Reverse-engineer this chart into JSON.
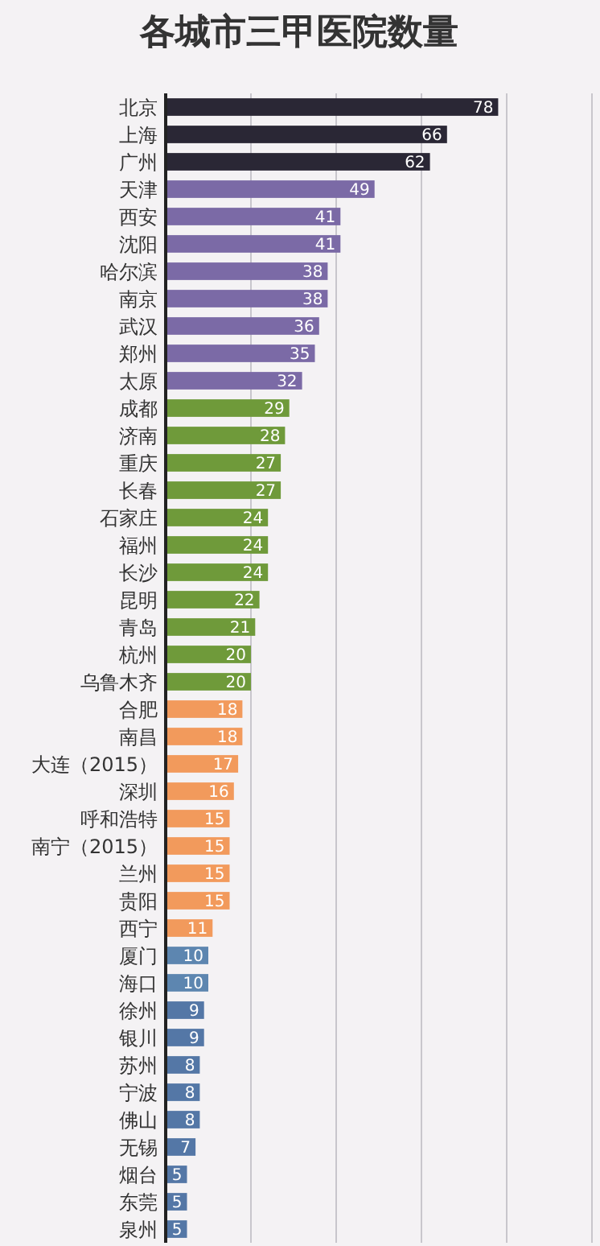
{
  "chart_data": {
    "type": "bar",
    "orientation": "horizontal",
    "title": "各城市三甲医院数量",
    "categories": [
      "北京",
      "上海",
      "广州",
      "天津",
      "西安",
      "沈阳",
      "哈尔滨",
      "南京",
      "武汉",
      "郑州",
      "太原",
      "成都",
      "济南",
      "重庆",
      "长春",
      "石家庄",
      "福州",
      "长沙",
      "昆明",
      "青岛",
      "杭州",
      "乌鲁木齐",
      "合肥",
      "南昌",
      "大连（2015）",
      "深圳",
      "呼和浩特",
      "南宁（2015）",
      "兰州",
      "贵阳",
      "西宁",
      "厦门",
      "海口",
      "徐州",
      "银川",
      "苏州",
      "宁波",
      "佛山",
      "无锡",
      "烟台",
      "东莞",
      "泉州"
    ],
    "values": [
      78,
      66,
      62,
      49,
      41,
      41,
      38,
      38,
      36,
      35,
      32,
      29,
      28,
      27,
      27,
      24,
      24,
      24,
      22,
      21,
      20,
      20,
      18,
      18,
      17,
      16,
      15,
      15,
      15,
      15,
      11,
      10,
      10,
      9,
      9,
      8,
      8,
      8,
      7,
      5,
      5,
      5
    ],
    "colors": [
      "#2a2735",
      "#2a2735",
      "#2a2735",
      "#7b6aa6",
      "#7b6aa6",
      "#7b6aa6",
      "#7b6aa6",
      "#7b6aa6",
      "#7b6aa6",
      "#7b6aa6",
      "#7b6aa6",
      "#6f9a3a",
      "#6f9a3a",
      "#6f9a3a",
      "#6f9a3a",
      "#6f9a3a",
      "#6f9a3a",
      "#6f9a3a",
      "#6f9a3a",
      "#6f9a3a",
      "#6f9a3a",
      "#6f9a3a",
      "#f29a5c",
      "#f29a5c",
      "#f29a5c",
      "#f29a5c",
      "#f29a5c",
      "#f29a5c",
      "#f29a5c",
      "#f29a5c",
      "#f29a5c",
      "#5d86b0",
      "#5d86b0",
      "#5477a6",
      "#5477a6",
      "#5477a6",
      "#5477a6",
      "#5477a6",
      "#5477a6",
      "#5477a6",
      "#5477a6",
      "#5477a6"
    ],
    "xlim": [
      0,
      100
    ],
    "xticks": [
      {
        "value": 20,
        "label": null
      },
      {
        "value": 40,
        "label": null
      },
      {
        "value": 60,
        "label": null
      },
      {
        "value": 80,
        "label": null
      },
      {
        "value": 100,
        "label": null
      }
    ],
    "grid": "x",
    "tick_labels": "y",
    "data_labels": true
  }
}
